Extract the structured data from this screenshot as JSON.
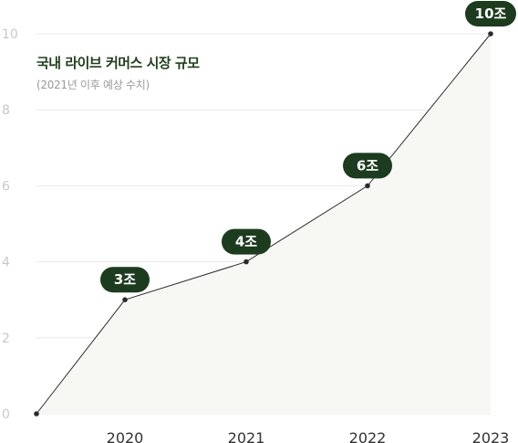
{
  "chart_data": {
    "type": "line",
    "title": "국내 라이브 커머스 시장 규모",
    "subtitle": "(2021년 이후 예상 수치)",
    "x": [
      "",
      "2020",
      "2021",
      "2022",
      "2023"
    ],
    "values": [
      0,
      3,
      4,
      6,
      10
    ],
    "data_labels": [
      "",
      "3조",
      "4조",
      "6조",
      "10조"
    ],
    "y_ticks": [
      "0",
      "2",
      "4",
      "6",
      "8",
      "10"
    ],
    "ylim": [
      0,
      10
    ],
    "grid": true,
    "colors": {
      "line": "#2b2b2b",
      "badge": "#1d3b1f",
      "title": "#1f3d1c",
      "area": "#f7f7f4"
    }
  }
}
